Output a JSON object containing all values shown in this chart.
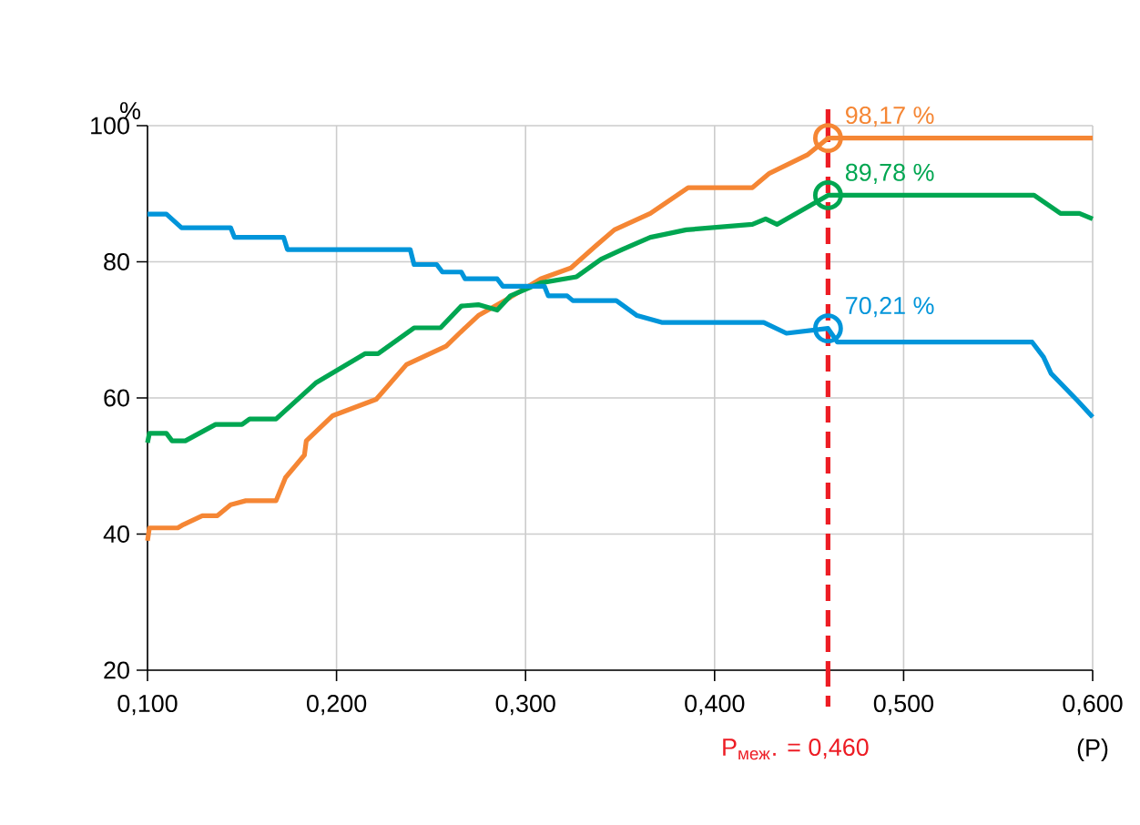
{
  "chart_data": {
    "type": "line",
    "ylabel": "%",
    "xlabel": "(P)",
    "xlim": [
      0.1,
      0.6
    ],
    "ylim": [
      20,
      100
    ],
    "xticks": [
      {
        "value": 0.1,
        "label": "0,100"
      },
      {
        "value": 0.2,
        "label": "0,200"
      },
      {
        "value": 0.3,
        "label": "0,300"
      },
      {
        "value": 0.4,
        "label": "0,400"
      },
      {
        "value": 0.5,
        "label": "0,500"
      },
      {
        "value": 0.6,
        "label": "0,600"
      }
    ],
    "yticks": [
      20,
      40,
      60,
      80,
      100
    ],
    "grid": true,
    "line_style": "solid",
    "ref_lines": [
      {
        "axis": "x",
        "value": 0.46,
        "label": "P$_{меж}$. = 0,460",
        "color": "#ed1c24",
        "line_style": "dashed"
      }
    ],
    "series": [
      {
        "color": "#f58634",
        "x": [
          0.1,
          0.101,
          0.116,
          0.119,
          0.129,
          0.137,
          0.144,
          0.152,
          0.168,
          0.173,
          0.183,
          0.184,
          0.198,
          0.221,
          0.237,
          0.258,
          0.265,
          0.275,
          0.292,
          0.308,
          0.324,
          0.337,
          0.347,
          0.366,
          0.386,
          0.42,
          0.429,
          0.449,
          0.46,
          0.6
        ],
        "values": [
          39,
          40.9,
          40.9,
          41.4,
          42.7,
          42.7,
          44.3,
          44.9,
          44.9,
          48.3,
          51.6,
          53.7,
          57.4,
          59.8,
          64.9,
          67.6,
          69.5,
          72.1,
          74.8,
          77.5,
          79.1,
          82.3,
          84.7,
          87.1,
          90.9,
          90.9,
          93,
          95.7,
          98.17,
          98.17
        ],
        "value_labels": [
          null,
          null,
          null,
          null,
          null,
          null,
          null,
          null,
          null,
          null,
          null,
          null,
          null,
          null,
          null,
          null,
          null,
          null,
          null,
          null,
          null,
          null,
          null,
          null,
          null,
          null,
          null,
          null,
          "98,17 %",
          null
        ]
      },
      {
        "color": "#00a651",
        "x": [
          0.1,
          0.101,
          0.11,
          0.113,
          0.12,
          0.136,
          0.15,
          0.154,
          0.168,
          0.189,
          0.215,
          0.222,
          0.241,
          0.255,
          0.266,
          0.275,
          0.285,
          0.292,
          0.308,
          0.327,
          0.34,
          0.351,
          0.366,
          0.385,
          0.42,
          0.427,
          0.433,
          0.46,
          0.569,
          0.583,
          0.593,
          0.6
        ],
        "values": [
          53.4,
          54.8,
          54.8,
          53.7,
          53.7,
          56.1,
          56.1,
          56.9,
          56.9,
          62.2,
          66.5,
          66.5,
          70.3,
          70.3,
          73.5,
          73.7,
          72.9,
          75,
          76.9,
          77.8,
          80.4,
          81.8,
          83.6,
          84.7,
          85.5,
          86.3,
          85.5,
          89.78,
          89.78,
          87.1,
          87.1,
          86.3
        ],
        "value_labels": [
          null,
          null,
          null,
          null,
          null,
          null,
          null,
          null,
          null,
          null,
          null,
          null,
          null,
          null,
          null,
          null,
          null,
          null,
          null,
          null,
          null,
          null,
          null,
          null,
          null,
          null,
          null,
          "89,78 %",
          null,
          null,
          null,
          null
        ]
      },
      {
        "color": "#0095da",
        "x": [
          0.1,
          0.11,
          0.118,
          0.144,
          0.146,
          0.172,
          0.174,
          0.239,
          0.241,
          0.253,
          0.256,
          0.266,
          0.268,
          0.285,
          0.288,
          0.31,
          0.312,
          0.322,
          0.325,
          0.348,
          0.359,
          0.372,
          0.426,
          0.438,
          0.46,
          0.465,
          0.568,
          0.574,
          0.578,
          0.592,
          0.6
        ],
        "values": [
          87,
          87,
          85,
          85,
          83.6,
          83.6,
          81.8,
          81.8,
          79.6,
          79.6,
          78.5,
          78.5,
          77.5,
          77.5,
          76.4,
          76.4,
          75,
          75,
          74.3,
          74.3,
          72.1,
          71.1,
          71.1,
          69.5,
          70.21,
          68.2,
          68.2,
          66,
          63.6,
          59.6,
          57.2
        ],
        "value_labels": [
          null,
          null,
          null,
          null,
          null,
          null,
          null,
          null,
          null,
          null,
          null,
          null,
          null,
          null,
          null,
          null,
          null,
          null,
          null,
          null,
          null,
          null,
          null,
          null,
          "70,21 %",
          null,
          null,
          null,
          null,
          null,
          null
        ]
      }
    ]
  }
}
